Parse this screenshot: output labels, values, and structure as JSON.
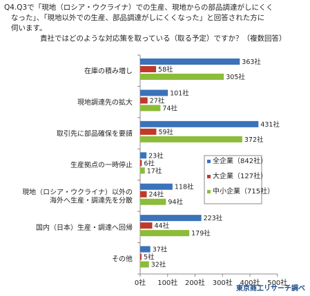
{
  "title_lines": [
    "Q4.Q3で「現地（ロシア・ウクライナ）での生産、現地からの部品調達がしにくく",
    "なった」、「現地以外での生産、部品調達がしにくくなった」と回答された方に",
    "伺います。",
    "貴社ではどのような対応策を取っている（取る予定）ですか？（複数回答）"
  ],
  "source": "東京商工リサーチ調べ",
  "colors": {
    "large": "#c0392b",
    "all": "#3a73b9",
    "sme": "#8cbc3a"
  },
  "chart_data": {
    "type": "bar",
    "orientation": "horizontal",
    "categories": [
      [
        "在庫の積み増し"
      ],
      [
        "現地調達先の拡大"
      ],
      [
        "取引先に部品確保を要請"
      ],
      [
        "生産拠点の一時停止"
      ],
      [
        "現地（ロシア・ウクライナ）以外の",
        "海外へ生産・調達先を分散"
      ],
      [
        "国内（日本）生産・調達へ回帰"
      ],
      [
        "その他"
      ]
    ],
    "series": [
      {
        "name": "全企業（842社）",
        "color": "#3a73b9",
        "values": [
          363,
          101,
          431,
          23,
          118,
          223,
          37
        ]
      },
      {
        "name": "大企業（127社）",
        "color": "#c0392b",
        "values": [
          58,
          27,
          59,
          6,
          24,
          44,
          5
        ]
      },
      {
        "name": "中小企業（715社）",
        "color": "#8cbc3a",
        "values": [
          305,
          74,
          372,
          17,
          94,
          179,
          32
        ]
      }
    ],
    "value_suffix": "社",
    "xlim": [
      0,
      500
    ],
    "xticks": [
      "0社",
      "100社",
      "200社",
      "300社",
      "400社",
      "500社"
    ],
    "legend_position": "right",
    "grid": false
  }
}
